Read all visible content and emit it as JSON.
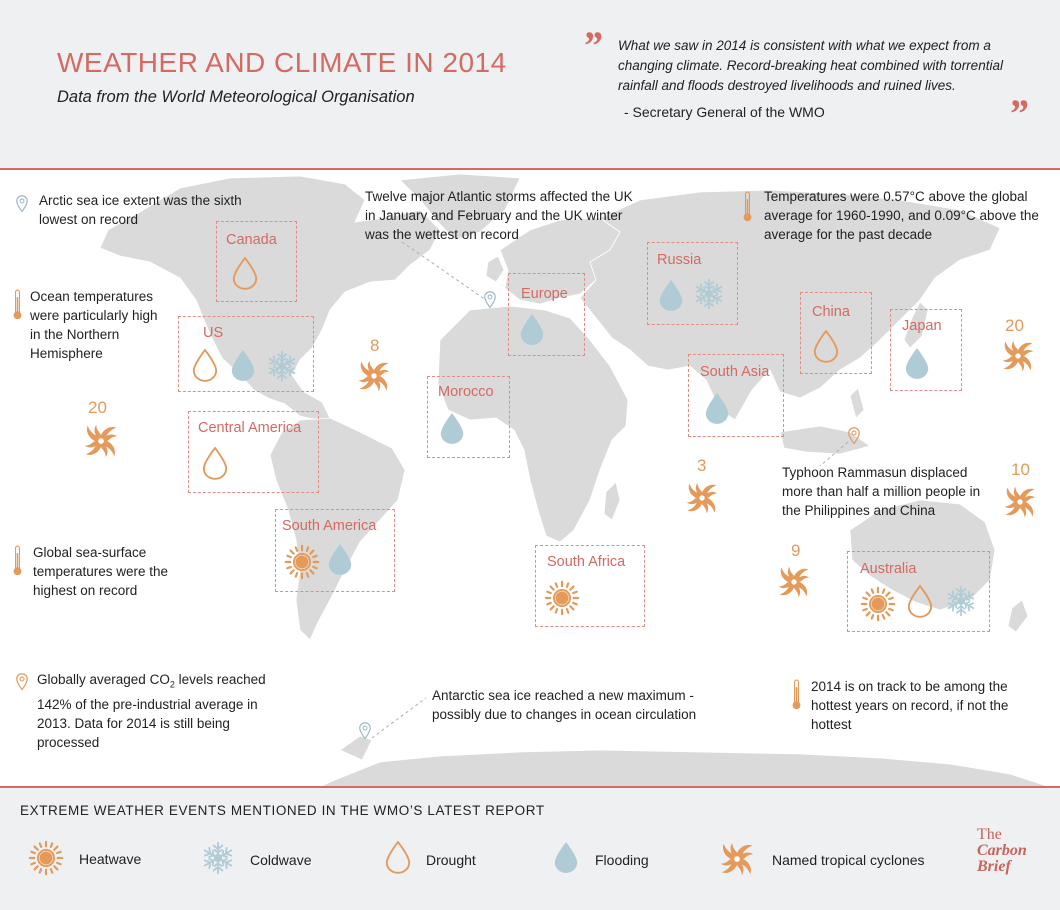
{
  "header": {
    "title": "WEATHER AND CLIMATE IN 2014",
    "subtitle": "Data from the World Meteorological Organisation",
    "quote_open": "”",
    "quote_close": "”",
    "quote": "What we saw in 2014 is consistent with what we expect from a changing climate. Record-breaking heat combined with torrential rainfall and floods destroyed livelihoods and ruined lives.",
    "attribution": "- Secretary General of the WMO"
  },
  "colors": {
    "accent": "#d46a62",
    "orange": "#e39a5b",
    "flood": "#aecbd6",
    "land": "#dadada"
  },
  "map": {
    "notes": {
      "arctic": "Arctic sea ice extent was the sixth lowest on record",
      "atlantic": "Twelve major Atlantic storms affected the UK in January and February and the UK winter was the wettest on record",
      "temps": "Temperatures were 0.57°C above the global average for 1960-1990, and 0.09°C above the average for the past decade",
      "ocean": "Ocean temperatures were particularly high in the Northern Hemisphere",
      "typhoon": "Typhoon Rammasun displaced more than half a million people in the Philippines and China",
      "sst": "Global sea-surface temperatures were the highest on record",
      "co2_a": "Globally averaged CO",
      "co2_sub": "2",
      "co2_b": " levels reached 142% of the pre-industrial average in 2013. Data for 2014 is still being processed",
      "antarctic": "Antarctic sea ice reached a new maximum - possibly due to changes in ocean circulation",
      "hottest": "2014 is on track to be among the hottest years on record, if not the hottest"
    },
    "regions": {
      "canada": "Canada",
      "us": "US",
      "central_america": "Central America",
      "south_america": "South America",
      "europe": "Europe",
      "morocco": "Morocco",
      "russia": "Russia",
      "china": "China",
      "japan": "Japan",
      "south_asia": "South Asia",
      "south_africa": "South Africa",
      "australia": "Australia"
    },
    "cyclone_counts": {
      "east_pacific": "20",
      "atlantic": "8",
      "north_indian": "3",
      "west_pacific": "20",
      "south_pacific": "10",
      "south_indian": "9"
    }
  },
  "legend": {
    "title": "EXTREME WEATHER EVENTS MENTIONED IN THE WMO’S LATEST REPORT",
    "items": [
      {
        "icon": "heatwave-icon",
        "label": "Heatwave"
      },
      {
        "icon": "coldwave-icon",
        "label": "Coldwave"
      },
      {
        "icon": "drought-icon",
        "label": "Drought"
      },
      {
        "icon": "flooding-icon",
        "label": "Flooding"
      },
      {
        "icon": "cyclone-icon",
        "label": "Named tropical cyclones"
      }
    ]
  },
  "brand": {
    "line1": "The",
    "line2": "Carbon",
    "line3": "Brief"
  }
}
